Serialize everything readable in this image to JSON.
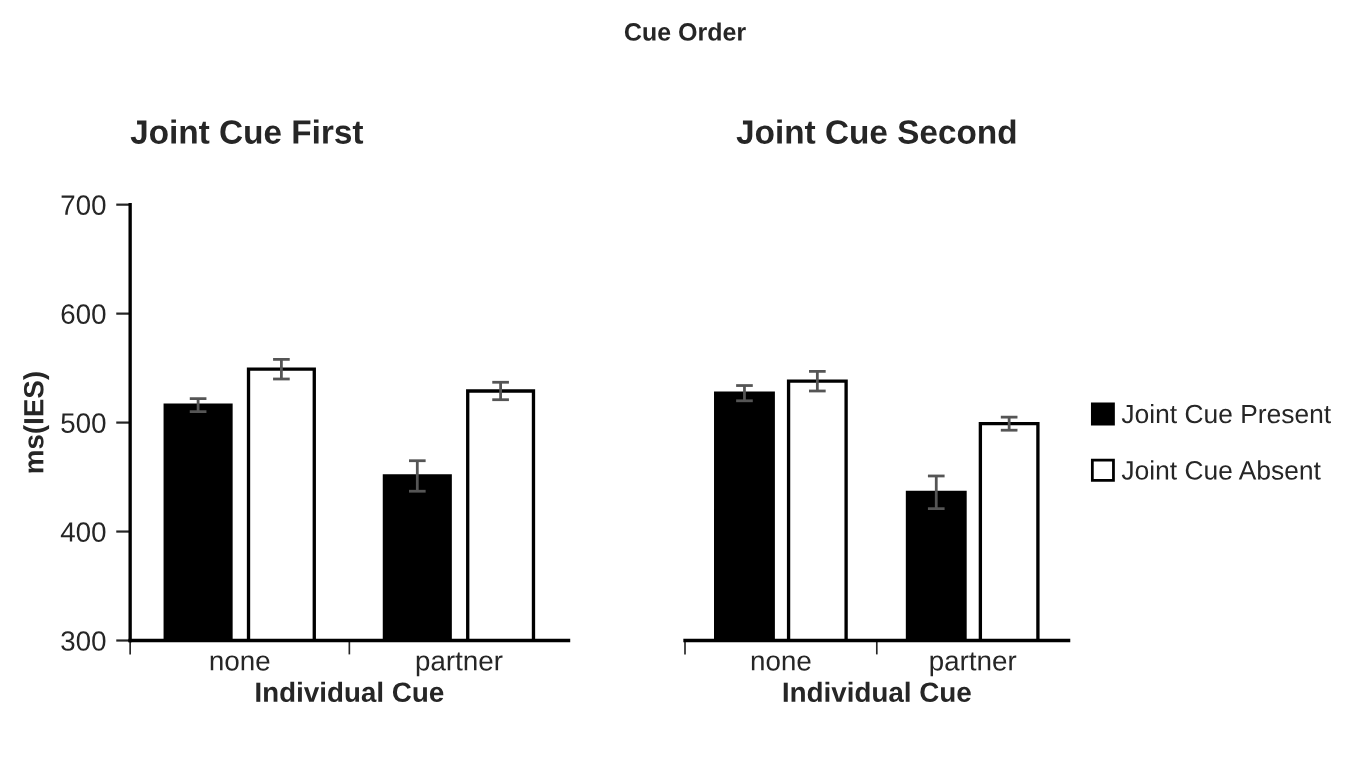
{
  "chart_data": [
    {
      "type": "bar",
      "title": "Joint Cue First",
      "xlabel": "Individual Cue",
      "ylabel": "ms(IES)",
      "annotations": [
        "Cue Order"
      ],
      "categories": [
        "none",
        "partner"
      ],
      "series": [
        {
          "color": "#000000",
          "values": [
            516,
            451
          ],
          "errors": [
            6,
            14
          ]
        },
        {
          "color": "#ffffff",
          "values": [
            549,
            529
          ],
          "errors": [
            9,
            8
          ]
        }
      ],
      "ylim": [
        300,
        700
      ],
      "yticks": [
        300,
        400,
        500,
        600,
        700
      ],
      "grid": false,
      "legend": false
    },
    {
      "type": "bar",
      "title": "Joint Cue Second",
      "xlabel": "Individual Cue",
      "categories": [
        "none",
        "partner"
      ],
      "series": [
        {
          "name": "Joint Cue Present",
          "color": "#000000",
          "values": [
            527,
            436
          ],
          "errors": [
            7,
            15
          ]
        },
        {
          "name": "Joint Cue Absent",
          "color": "#ffffff",
          "values": [
            538,
            499
          ],
          "errors": [
            9,
            6
          ]
        }
      ],
      "ylim": [
        300,
        700
      ],
      "yticks": [
        300,
        400,
        500,
        600,
        700
      ],
      "tick_labels": "x",
      "grid": false,
      "legend": "right"
    }
  ]
}
